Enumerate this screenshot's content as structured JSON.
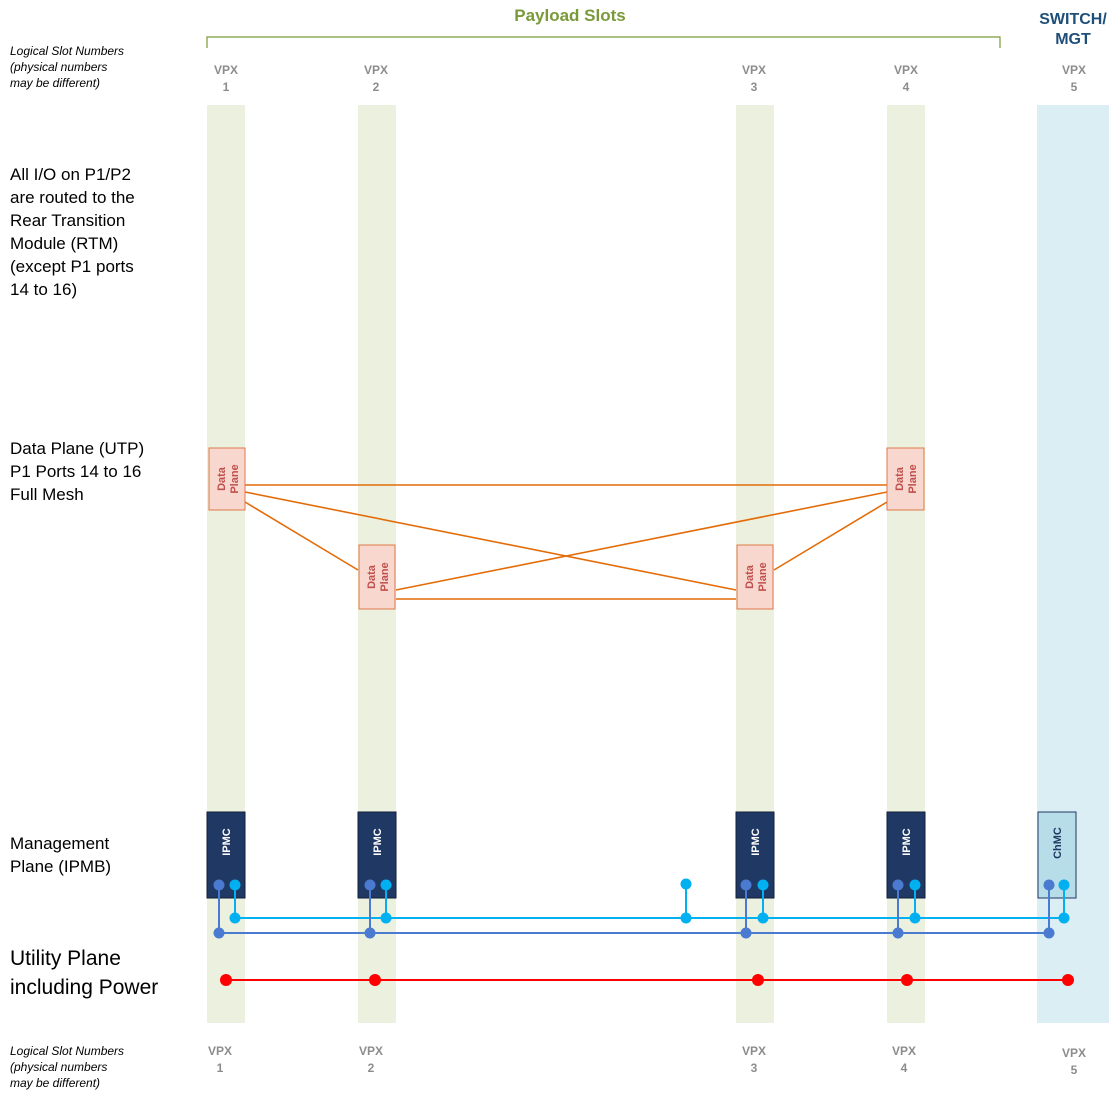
{
  "headers": {
    "payload_title": "Payload Slots",
    "switch_title": "SWITCH/\nMGT"
  },
  "notes": {
    "top": "Logical Slot Numbers\n(physical numbers\nmay be different)",
    "bottom": "Logical Slot Numbers\n(physical numbers\nmay be different)"
  },
  "slot_labels": [
    "VPX\n1",
    "VPX\n2",
    "VPX\n3",
    "VPX\n4",
    "VPX\n5"
  ],
  "side_labels": {
    "io": "All I/O on P1/P2\nare routed to the\nRear Transition\nModule (RTM)\n (except P1 ports\n14 to 16)",
    "data_plane": "Data Plane (UTP)\nP1 Ports 14 to 16\nFull Mesh",
    "management": "Management\nPlane (IPMB)",
    "utility": "Utility Plane\nincluding Power"
  },
  "boxes": {
    "data_plane_label": "Data\nPlane",
    "ipmc_label": "IPMC",
    "chmc_label": "ChMC"
  },
  "colors": {
    "payload_column": "#ebf1de",
    "switch_column": "#dbeef4",
    "data_plane_fill": "#f8d7cf",
    "data_plane_border": "#e07a4a",
    "data_plane_text": "#c0504d",
    "mesh_line": "#e36c09",
    "ipmc_fill": "#1f3864",
    "chmc_fill": "#b7dde8",
    "ipmb_a": "#00b0f0",
    "ipmb_b": "#4a7bd0",
    "power": "#ff0000",
    "payload_title": "#7a9a3a",
    "switch_title": "#1f4e79"
  }
}
